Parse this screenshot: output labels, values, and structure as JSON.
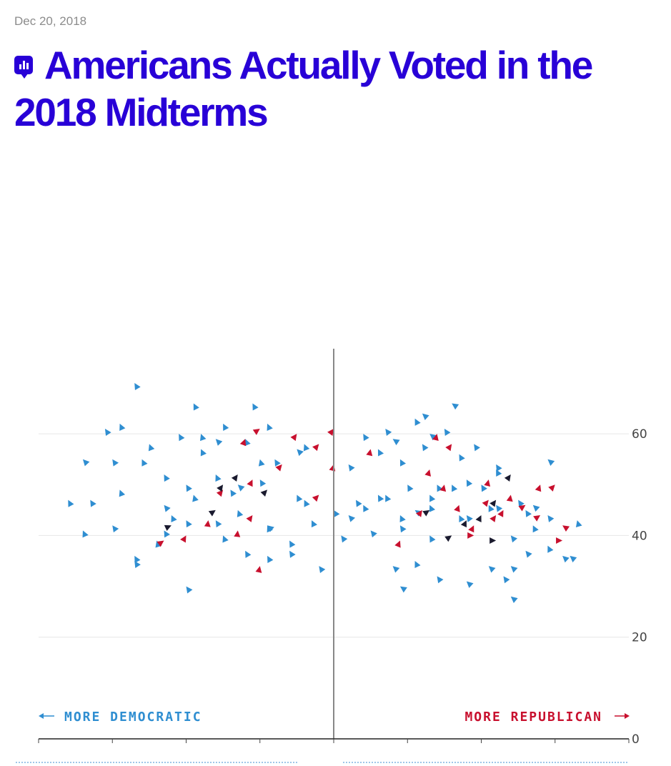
{
  "header": {
    "date": "Dec 20, 2018",
    "title": "Americans Actually Voted in the 2018 Midterms",
    "icon": "chart-bubble-icon",
    "brand_color": "#2800d7"
  },
  "chart_data": {
    "type": "scatter",
    "subtype": "arrow-vector",
    "title": "",
    "xlabel": "",
    "ylabel": "",
    "x_labels": {
      "left": "MORE DEMOCRATIC",
      "right": "MORE REPUBLICAN"
    },
    "ylim": [
      0,
      70
    ],
    "xlim": [
      -40,
      40
    ],
    "y_ticks": [
      0,
      20,
      40,
      60
    ],
    "grid": true,
    "colors": {
      "dem_shift": "#2f8ed1",
      "rep_shift": "#c8102e",
      "no_change": "#1a1a2e",
      "axis": "#888888",
      "grid": "#e6e6e6"
    },
    "series": [
      {
        "name": "",
        "color": "#2f8ed1",
        "arrows": [
          [
            -30,
            28,
            -34,
            41
          ],
          [
            -32,
            36,
            -36,
            47
          ],
          [
            -28,
            35,
            -33,
            47
          ],
          [
            -25,
            32,
            -30,
            42
          ],
          [
            -26,
            38,
            -29,
            49
          ],
          [
            -22,
            38,
            -30,
            55
          ],
          [
            -21,
            40,
            -26,
            55
          ],
          [
            -18,
            37,
            -23,
            46
          ],
          [
            -16,
            34,
            -19,
            48
          ],
          [
            -20,
            39,
            -25,
            58
          ],
          [
            -20,
            20,
            -24,
            39
          ],
          [
            -17,
            28,
            -22,
            44
          ],
          [
            -14,
            35,
            -20,
            50
          ],
          [
            -12,
            38,
            -18,
            57
          ],
          [
            -15,
            30,
            -20,
            43
          ],
          [
            -10,
            33,
            -16,
            52
          ],
          [
            -13,
            40,
            -18,
            60
          ],
          [
            -8,
            35,
            -14,
            49
          ],
          [
            -6,
            38,
            -12,
            59
          ],
          [
            -9,
            30,
            -13,
            45
          ],
          [
            -4,
            36,
            -10,
            51
          ],
          [
            -2,
            40,
            -8,
            55
          ],
          [
            0,
            33,
            -5,
            48
          ],
          [
            -5,
            29,
            -9,
            42
          ],
          [
            -7,
            24,
            -12,
            37
          ],
          [
            -1,
            26,
            -6,
            39
          ],
          [
            2,
            28,
            -3,
            43
          ],
          [
            -3,
            42,
            -9,
            62
          ],
          [
            1,
            40,
            -4,
            58
          ],
          [
            -11,
            26,
            -15,
            40
          ],
          [
            -19,
            31,
            -23,
            41
          ],
          [
            -24,
            28,
            -27,
            36
          ],
          [
            -27,
            44,
            -34,
            55
          ],
          [
            -15,
            44,
            -21,
            60
          ],
          [
            -12,
            46,
            -19,
            66
          ],
          [
            -9,
            45,
            -15,
            62
          ],
          [
            -4,
            47,
            -11,
            66
          ],
          [
            -6,
            28,
            -9,
            36
          ],
          [
            -23,
            26,
            -27,
            35
          ],
          [
            -16,
            22,
            -20,
            30
          ],
          [
            -1,
            38,
            -4,
            47
          ],
          [
            -7,
            42,
            -13,
            50
          ],
          [
            -10,
            50,
            -16,
            59
          ],
          [
            -3,
            30,
            -6,
            37
          ],
          [
            1,
            48,
            -5,
            57
          ],
          [
            -24,
            46,
            -29,
            62
          ],
          [
            -18,
            48,
            -27,
            70
          ],
          [
            -26,
            50,
            -31,
            61
          ],
          [
            -20,
            44,
            -23,
            52
          ],
          [
            -13,
            36,
            -16,
            43
          ],
          [
            -1,
            32,
            -9,
            42
          ],
          [
            -8,
            45,
            -10,
            55
          ],
          [
            0,
            30,
            -2,
            34
          ],
          [
            8,
            26,
            1,
            40
          ],
          [
            6,
            30,
            0,
            45
          ],
          [
            10,
            29,
            4,
            46
          ],
          [
            12,
            32,
            6,
            48
          ],
          [
            14,
            28,
            9,
            44
          ],
          [
            16,
            34,
            10,
            50
          ],
          [
            18,
            30,
            13,
            46
          ],
          [
            20,
            33,
            14,
            50
          ],
          [
            22,
            29,
            17,
            44
          ],
          [
            24,
            35,
            18,
            51
          ],
          [
            26,
            31,
            21,
            46
          ],
          [
            28,
            36,
            22,
            53
          ],
          [
            12,
            40,
            6,
            57
          ],
          [
            15,
            38,
            9,
            55
          ],
          [
            19,
            42,
            12,
            58
          ],
          [
            23,
            40,
            17,
            56
          ],
          [
            25,
            45,
            19,
            58
          ],
          [
            10,
            45,
            4,
            60
          ],
          [
            14,
            47,
            7,
            61
          ],
          [
            8,
            42,
            2,
            54
          ],
          [
            17,
            46,
            11,
            63
          ],
          [
            21,
            47,
            15,
            61
          ],
          [
            27,
            42,
            22,
            54
          ],
          [
            29,
            38,
            25,
            47
          ],
          [
            31,
            33,
            26,
            45
          ],
          [
            11,
            36,
            7,
            48
          ],
          [
            13,
            33,
            9,
            42
          ],
          [
            17,
            36,
            13,
            48
          ],
          [
            20,
            38,
            16,
            50
          ],
          [
            22,
            36,
            18,
            44
          ],
          [
            24,
            40,
            20,
            50
          ],
          [
            26,
            38,
            22,
            46
          ],
          [
            28,
            33,
            24,
            40
          ],
          [
            30,
            30,
            26,
            37
          ],
          [
            18,
            24,
            14,
            32
          ],
          [
            14,
            26,
            11,
            35
          ],
          [
            9,
            34,
            5,
            41
          ],
          [
            33,
            26,
            29,
            38
          ],
          [
            36,
            28,
            33,
            43
          ],
          [
            31,
            30,
            27,
            42
          ],
          [
            22,
            60,
            16,
            66
          ],
          [
            19,
            55,
            12,
            64
          ],
          [
            29,
            22,
            24,
            28
          ],
          [
            16,
            32,
            13,
            40
          ],
          [
            6,
            40,
            3,
            47
          ],
          [
            7,
            36,
            2,
            44
          ],
          [
            11,
            30,
            8,
            34
          ],
          [
            27,
            30,
            24,
            34
          ],
          [
            30,
            42,
            27,
            46
          ],
          [
            24,
            30,
            21,
            34
          ],
          [
            15,
            52,
            8,
            59
          ],
          [
            20,
            52,
            13,
            60
          ],
          [
            33,
            50,
            29,
            55
          ],
          [
            26,
            26,
            23,
            32
          ],
          [
            12,
            27,
            9,
            30
          ],
          [
            15,
            41,
            11,
            45
          ],
          [
            21,
            27,
            18,
            31
          ],
          [
            34,
            32,
            31,
            36
          ],
          [
            32,
            38,
            29,
            44
          ],
          [
            37,
            30,
            32,
            36
          ]
        ]
      },
      {
        "name": "",
        "color": "#c8102e",
        "arrows": [
          [
            -26,
            36,
            -23,
            39
          ],
          [
            -22,
            35,
            -20,
            40
          ],
          [
            -18,
            32,
            -17,
            43
          ],
          [
            -14,
            28,
            -13,
            41
          ],
          [
            -19,
            42,
            -15,
            49
          ],
          [
            -15,
            36,
            -11,
            44
          ],
          [
            -13,
            45,
            -11,
            51
          ],
          [
            -10,
            49,
            -7,
            54
          ],
          [
            -14,
            51,
            -12,
            59
          ],
          [
            -13,
            58,
            -10,
            61
          ],
          [
            -7,
            56,
            -5,
            60
          ],
          [
            -5,
            53,
            -2,
            58
          ],
          [
            -3,
            55,
            0,
            61
          ],
          [
            -2,
            42,
            0,
            54
          ],
          [
            -12,
            20,
            -10,
            34
          ],
          [
            7,
            32,
            9,
            39
          ],
          [
            9,
            39,
            12,
            45
          ],
          [
            11,
            43,
            13,
            53
          ],
          [
            12,
            48,
            14,
            60
          ],
          [
            13,
            52,
            16,
            58
          ],
          [
            15,
            38,
            17,
            46
          ],
          [
            16,
            33,
            19,
            42
          ],
          [
            17,
            40,
            21,
            47
          ],
          [
            18,
            36,
            22,
            44
          ],
          [
            20,
            37,
            23,
            45
          ],
          [
            22,
            32,
            24,
            48
          ],
          [
            26,
            42,
            28,
            50
          ],
          [
            10,
            40,
            19,
            40
          ],
          [
            19,
            39,
            31,
            39
          ],
          [
            27,
            43,
            28,
            44
          ],
          [
            -4,
            45,
            -2,
            48
          ],
          [
            4,
            50,
            5,
            57
          ],
          [
            14,
            44,
            15,
            50
          ],
          [
            20,
            45,
            21,
            51
          ],
          [
            24,
            44,
            26,
            46
          ],
          [
            28,
            47,
            30,
            50
          ],
          [
            32,
            41,
            31,
            42
          ]
        ]
      },
      {
        "name": "",
        "color": "#1a1a2e",
        "arrows": [
          [
            -25,
            40,
            -22,
            42
          ],
          [
            -18,
            43,
            -16,
            45
          ],
          [
            -14,
            50,
            -13,
            52
          ],
          [
            -11,
            46,
            -9,
            49
          ],
          [
            15,
            39,
            16,
            40
          ],
          [
            17,
            40,
            18,
            43
          ],
          [
            19,
            41,
            20,
            44
          ],
          [
            21,
            45,
            22,
            47
          ],
          [
            12,
            44,
            13,
            45
          ],
          [
            23,
            50,
            24,
            52
          ],
          [
            -16,
            48,
            -15,
            50
          ],
          [
            20,
            39,
            22,
            39
          ]
        ]
      }
    ]
  }
}
